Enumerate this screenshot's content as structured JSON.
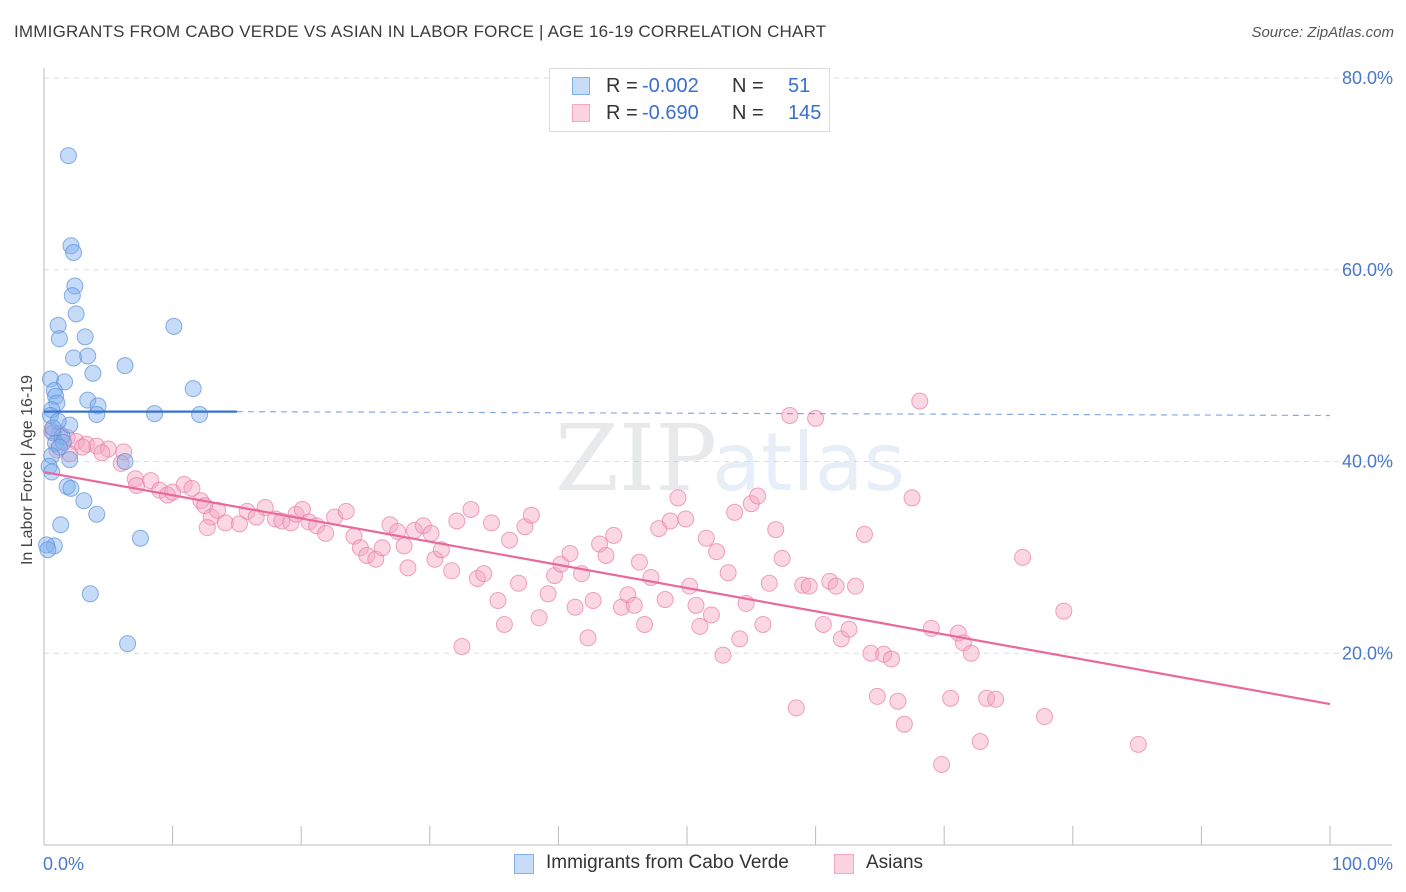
{
  "title": "IMMIGRANTS FROM CABO VERDE VS ASIAN IN LABOR FORCE | AGE 16-19 CORRELATION CHART",
  "source": "Source: ZipAtlas.com",
  "watermark": "ZIPatlas",
  "legend": {
    "rows": [
      {
        "r_label": "R =",
        "r_value": "-0.002",
        "n_label": "N =",
        "n_value": "51",
        "color": "#7fb0ee"
      },
      {
        "r_label": "R =",
        "r_value": "-0.690",
        "n_label": "N =",
        "n_value": "145",
        "color": "#f4a6c0"
      }
    ]
  },
  "bottom_legend": [
    {
      "label": "Immigrants from Cabo Verde",
      "color": "#7fb0ee"
    },
    {
      "label": "Asians",
      "color": "#f4a6c0"
    }
  ],
  "chart_data": {
    "type": "scatter",
    "ylabel": "In Labor Force | Age 16-19",
    "xlim": [
      0,
      100
    ],
    "ylim": [
      0,
      80
    ],
    "y_ticks": [
      {
        "value": 20,
        "label": "20.0%"
      },
      {
        "value": 40,
        "label": "40.0%"
      },
      {
        "value": 60,
        "label": "60.0%"
      },
      {
        "value": 80,
        "label": "80.0%"
      }
    ],
    "x_tick_labels": [
      {
        "value": 0,
        "label": "0.0%"
      },
      {
        "value": 100,
        "label": "100.0%"
      }
    ],
    "x_minor_ticks": [
      10,
      20,
      30,
      40,
      50,
      60,
      70,
      80,
      90,
      100
    ],
    "grid": true,
    "series": [
      {
        "name": "Immigrants from Cabo Verde",
        "color": "#7fb0ee",
        "stroke": "#5b8fd8",
        "trend": {
          "x0": 0,
          "y0": 45.2,
          "x1": 15,
          "y1": 45.2,
          "dash_to_x": 100,
          "dash_y": 44.8,
          "color": "#3a72cc"
        },
        "points": [
          [
            1.9,
            71.9
          ],
          [
            2.1,
            62.5
          ],
          [
            2.3,
            61.8
          ],
          [
            2.4,
            58.3
          ],
          [
            2.2,
            57.3
          ],
          [
            2.5,
            55.4
          ],
          [
            1.1,
            54.2
          ],
          [
            10.1,
            54.1
          ],
          [
            1.2,
            52.8
          ],
          [
            3.2,
            53.0
          ],
          [
            2.3,
            50.8
          ],
          [
            3.4,
            51.0
          ],
          [
            6.3,
            50.0
          ],
          [
            0.5,
            48.6
          ],
          [
            1.6,
            48.3
          ],
          [
            3.8,
            49.2
          ],
          [
            11.6,
            47.6
          ],
          [
            0.8,
            47.4
          ],
          [
            0.9,
            46.8
          ],
          [
            3.4,
            46.4
          ],
          [
            1.0,
            46.1
          ],
          [
            4.2,
            45.8
          ],
          [
            0.6,
            45.4
          ],
          [
            8.6,
            45.0
          ],
          [
            4.1,
            44.9
          ],
          [
            12.1,
            44.9
          ],
          [
            0.7,
            43.0
          ],
          [
            1.4,
            42.6
          ],
          [
            2.0,
            43.8
          ],
          [
            0.9,
            41.9
          ],
          [
            1.5,
            42.0
          ],
          [
            1.2,
            41.5
          ],
          [
            0.6,
            40.6
          ],
          [
            2.0,
            40.2
          ],
          [
            6.3,
            40.0
          ],
          [
            0.4,
            39.5
          ],
          [
            0.6,
            38.9
          ],
          [
            1.8,
            37.4
          ],
          [
            2.1,
            37.2
          ],
          [
            3.1,
            35.9
          ],
          [
            4.1,
            34.5
          ],
          [
            1.3,
            33.4
          ],
          [
            7.5,
            32.0
          ],
          [
            0.8,
            31.2
          ],
          [
            0.2,
            31.3
          ],
          [
            0.3,
            30.8
          ],
          [
            3.6,
            26.2
          ],
          [
            6.5,
            21.0
          ],
          [
            0.5,
            44.8
          ],
          [
            1.1,
            44.2
          ],
          [
            0.7,
            43.5
          ]
        ]
      },
      {
        "name": "Asians",
        "color": "#f4a6c0",
        "stroke": "#e87ea4",
        "trend": {
          "x0": 0,
          "y0": 38.9,
          "x1": 100,
          "y1": 14.7,
          "color": "#e8699a"
        },
        "points": [
          [
            0.6,
            43.2
          ],
          [
            1.2,
            42.9
          ],
          [
            1.8,
            42.5
          ],
          [
            2.5,
            42.1
          ],
          [
            3.3,
            41.8
          ],
          [
            4.1,
            41.6
          ],
          [
            5.0,
            41.3
          ],
          [
            1.0,
            41.2
          ],
          [
            2.0,
            40.8
          ],
          [
            3.0,
            41.5
          ],
          [
            4.5,
            40.9
          ],
          [
            6.2,
            41.0
          ],
          [
            6.0,
            39.8
          ],
          [
            7.1,
            38.2
          ],
          [
            7.2,
            37.5
          ],
          [
            8.3,
            38.0
          ],
          [
            9.0,
            37.0
          ],
          [
            9.6,
            36.5
          ],
          [
            10.0,
            36.8
          ],
          [
            10.9,
            37.6
          ],
          [
            11.5,
            37.2
          ],
          [
            12.2,
            35.9
          ],
          [
            12.5,
            35.4
          ],
          [
            13.0,
            34.2
          ],
          [
            12.7,
            33.1
          ],
          [
            13.5,
            34.9
          ],
          [
            14.1,
            33.6
          ],
          [
            15.2,
            33.5
          ],
          [
            15.8,
            34.8
          ],
          [
            16.5,
            34.2
          ],
          [
            17.2,
            35.2
          ],
          [
            18.0,
            34.0
          ],
          [
            18.5,
            33.8
          ],
          [
            19.2,
            33.6
          ],
          [
            19.6,
            34.5
          ],
          [
            20.1,
            35.0
          ],
          [
            20.6,
            33.7
          ],
          [
            21.2,
            33.3
          ],
          [
            21.9,
            32.5
          ],
          [
            22.6,
            34.2
          ],
          [
            23.5,
            34.8
          ],
          [
            24.1,
            32.2
          ],
          [
            24.6,
            31.0
          ],
          [
            25.1,
            30.2
          ],
          [
            25.8,
            29.8
          ],
          [
            26.3,
            31.0
          ],
          [
            26.9,
            33.4
          ],
          [
            27.5,
            32.7
          ],
          [
            28.0,
            31.2
          ],
          [
            28.3,
            28.9
          ],
          [
            28.8,
            32.8
          ],
          [
            29.5,
            33.3
          ],
          [
            30.1,
            32.5
          ],
          [
            30.4,
            29.8
          ],
          [
            30.9,
            30.8
          ],
          [
            31.7,
            28.6
          ],
          [
            32.1,
            33.8
          ],
          [
            32.5,
            20.7
          ],
          [
            33.2,
            35.0
          ],
          [
            33.7,
            27.8
          ],
          [
            34.2,
            28.3
          ],
          [
            34.8,
            33.6
          ],
          [
            35.3,
            25.5
          ],
          [
            35.8,
            23.0
          ],
          [
            36.2,
            31.8
          ],
          [
            36.9,
            27.3
          ],
          [
            37.4,
            33.2
          ],
          [
            37.9,
            34.4
          ],
          [
            38.5,
            23.7
          ],
          [
            39.2,
            26.2
          ],
          [
            39.7,
            28.1
          ],
          [
            40.2,
            29.3
          ],
          [
            40.9,
            30.4
          ],
          [
            41.3,
            24.8
          ],
          [
            41.8,
            28.3
          ],
          [
            42.3,
            21.6
          ],
          [
            42.7,
            25.5
          ],
          [
            43.2,
            31.4
          ],
          [
            43.7,
            30.2
          ],
          [
            44.3,
            32.3
          ],
          [
            44.9,
            24.8
          ],
          [
            45.4,
            26.1
          ],
          [
            45.9,
            25.0
          ],
          [
            46.3,
            29.5
          ],
          [
            46.7,
            23.0
          ],
          [
            47.2,
            27.9
          ],
          [
            47.8,
            33.0
          ],
          [
            48.3,
            25.6
          ],
          [
            48.7,
            33.8
          ],
          [
            49.3,
            36.2
          ],
          [
            49.9,
            34.0
          ],
          [
            50.2,
            27.0
          ],
          [
            50.7,
            25.0
          ],
          [
            51.0,
            22.8
          ],
          [
            51.5,
            32.0
          ],
          [
            51.9,
            24.0
          ],
          [
            52.3,
            30.6
          ],
          [
            52.8,
            19.8
          ],
          [
            53.2,
            28.4
          ],
          [
            53.7,
            34.7
          ],
          [
            54.1,
            21.5
          ],
          [
            54.6,
            25.2
          ],
          [
            55.0,
            35.6
          ],
          [
            55.5,
            36.4
          ],
          [
            55.9,
            23.0
          ],
          [
            56.4,
            27.3
          ],
          [
            56.9,
            32.9
          ],
          [
            57.4,
            29.9
          ],
          [
            58.0,
            44.8
          ],
          [
            58.5,
            14.3
          ],
          [
            59.0,
            27.1
          ],
          [
            59.5,
            27.0
          ],
          [
            60.0,
            44.5
          ],
          [
            60.6,
            23.0
          ],
          [
            61.1,
            27.5
          ],
          [
            61.6,
            27.0
          ],
          [
            62.0,
            21.5
          ],
          [
            62.6,
            22.5
          ],
          [
            63.1,
            27.0
          ],
          [
            63.8,
            32.4
          ],
          [
            64.3,
            20.0
          ],
          [
            64.8,
            15.5
          ],
          [
            65.3,
            19.9
          ],
          [
            65.9,
            19.4
          ],
          [
            66.4,
            15.0
          ],
          [
            66.9,
            12.6
          ],
          [
            67.5,
            36.2
          ],
          [
            68.1,
            46.3
          ],
          [
            69.0,
            22.6
          ],
          [
            69.8,
            8.4
          ],
          [
            70.5,
            15.3
          ],
          [
            71.1,
            22.1
          ],
          [
            71.5,
            21.1
          ],
          [
            72.1,
            20.0
          ],
          [
            72.8,
            10.8
          ],
          [
            73.3,
            15.3
          ],
          [
            74.0,
            15.2
          ],
          [
            76.1,
            30.0
          ],
          [
            77.8,
            13.4
          ],
          [
            79.3,
            24.4
          ],
          [
            85.1,
            10.5
          ]
        ]
      }
    ]
  }
}
